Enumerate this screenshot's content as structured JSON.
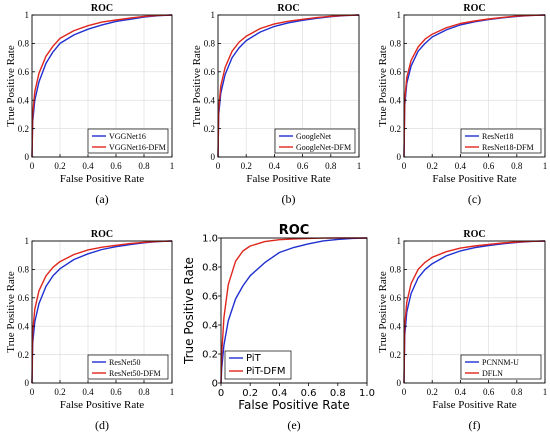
{
  "figure": {
    "colors": {
      "series1": "#1f2fd1",
      "series2": "#e0261c"
    }
  },
  "chart_data": [
    {
      "type": "line",
      "id": "a",
      "subfigure_label": "(a)",
      "title": "ROC",
      "xlabel": "False Positive Rate",
      "ylabel": "True Positive Rate",
      "xlim": [
        0,
        1
      ],
      "ylim": [
        0,
        1
      ],
      "xticks": [
        "0",
        "0.2",
        "0.4",
        "0.6",
        "0.8",
        "1"
      ],
      "yticks": [
        "0",
        "0.2",
        "0.4",
        "0.6",
        "0.8",
        "1"
      ],
      "grid": true,
      "legend_position": "bottom-right",
      "x": [
        0,
        0.005,
        0.02,
        0.05,
        0.1,
        0.15,
        0.2,
        0.3,
        0.4,
        0.5,
        0.6,
        0.7,
        0.8,
        0.9,
        1.0
      ],
      "series": [
        {
          "name": "VGGNet16",
          "y": [
            0,
            0.25,
            0.4,
            0.53,
            0.66,
            0.74,
            0.8,
            0.86,
            0.9,
            0.93,
            0.955,
            0.97,
            0.985,
            0.995,
            1.0
          ]
        },
        {
          "name": "VGGNet16-DFM",
          "y": [
            0,
            0.3,
            0.46,
            0.59,
            0.71,
            0.78,
            0.835,
            0.89,
            0.925,
            0.95,
            0.965,
            0.978,
            0.99,
            0.997,
            1.0
          ]
        }
      ]
    },
    {
      "type": "line",
      "id": "b",
      "subfigure_label": "(b)",
      "title": "ROC",
      "xlabel": "False Positive Rate",
      "ylabel": "True Positive Rate",
      "xlim": [
        0,
        1
      ],
      "ylim": [
        0,
        1
      ],
      "xticks": [
        "0",
        "0.2",
        "0.4",
        "0.6",
        "0.8",
        "1"
      ],
      "yticks": [
        "0",
        "0.2",
        "0.4",
        "0.6",
        "0.8",
        "1"
      ],
      "grid": true,
      "legend_position": "bottom-right",
      "x": [
        0,
        0.005,
        0.02,
        0.05,
        0.1,
        0.15,
        0.2,
        0.3,
        0.4,
        0.5,
        0.6,
        0.7,
        0.8,
        0.9,
        1.0
      ],
      "series": [
        {
          "name": "GoogleNet",
          "y": [
            0,
            0.3,
            0.45,
            0.58,
            0.7,
            0.77,
            0.82,
            0.88,
            0.92,
            0.945,
            0.963,
            0.977,
            0.988,
            0.996,
            1.0
          ]
        },
        {
          "name": "GoogleNet-DFM",
          "y": [
            0,
            0.34,
            0.5,
            0.63,
            0.745,
            0.81,
            0.85,
            0.905,
            0.937,
            0.956,
            0.97,
            0.982,
            0.991,
            0.997,
            1.0
          ]
        }
      ]
    },
    {
      "type": "line",
      "id": "c",
      "subfigure_label": "(c)",
      "title": "ROC",
      "xlabel": "False Positive Rate",
      "ylabel": "True Positive Rate",
      "xlim": [
        0,
        1
      ],
      "ylim": [
        0,
        1
      ],
      "xticks": [
        "0",
        "0.2",
        "0.4",
        "0.6",
        "0.8",
        "1"
      ],
      "yticks": [
        "0",
        "0.2",
        "0.4",
        "0.6",
        "0.8",
        "1"
      ],
      "grid": true,
      "legend_position": "bottom-right",
      "x": [
        0,
        0.005,
        0.02,
        0.05,
        0.1,
        0.15,
        0.2,
        0.3,
        0.4,
        0.5,
        0.6,
        0.7,
        0.8,
        0.9,
        1.0
      ],
      "series": [
        {
          "name": "ResNet18",
          "y": [
            0,
            0.36,
            0.52,
            0.64,
            0.745,
            0.8,
            0.845,
            0.895,
            0.93,
            0.952,
            0.968,
            0.98,
            0.99,
            0.997,
            1.0
          ]
        },
        {
          "name": "ResNet18-DFM",
          "y": [
            0,
            0.4,
            0.56,
            0.68,
            0.775,
            0.83,
            0.865,
            0.91,
            0.94,
            0.958,
            0.972,
            0.983,
            0.992,
            0.997,
            1.0
          ]
        }
      ]
    },
    {
      "type": "line",
      "id": "d",
      "subfigure_label": "(d)",
      "title": "ROC",
      "xlabel": "False Positive Rate",
      "ylabel": "True Positive Rate",
      "xlim": [
        0,
        1
      ],
      "ylim": [
        0,
        1
      ],
      "xticks": [
        "0",
        "0.2",
        "0.4",
        "0.6",
        "0.8",
        "1"
      ],
      "yticks": [
        "0",
        "0.2",
        "0.4",
        "0.6",
        "0.8",
        "1"
      ],
      "grid": true,
      "legend_position": "bottom-right",
      "x": [
        0,
        0.005,
        0.02,
        0.05,
        0.1,
        0.15,
        0.2,
        0.3,
        0.4,
        0.5,
        0.6,
        0.7,
        0.8,
        0.9,
        1.0
      ],
      "series": [
        {
          "name": "ResNet50",
          "y": [
            0,
            0.28,
            0.43,
            0.56,
            0.68,
            0.755,
            0.805,
            0.87,
            0.91,
            0.94,
            0.96,
            0.975,
            0.987,
            0.996,
            1.0
          ]
        },
        {
          "name": "ResNet50-DFM",
          "y": [
            0,
            0.36,
            0.52,
            0.65,
            0.755,
            0.815,
            0.855,
            0.905,
            0.937,
            0.956,
            0.97,
            0.982,
            0.991,
            0.997,
            1.0
          ]
        }
      ]
    },
    {
      "type": "line",
      "id": "e",
      "subfigure_label": "(e)",
      "title": "ROC",
      "xlabel": "False Positive Rate",
      "ylabel": "True Positive Rate",
      "xlim": [
        0,
        1
      ],
      "ylim": [
        0,
        1
      ],
      "xticks": [
        "0",
        "0.2",
        "0.4",
        "0.6",
        "0.8",
        "1.0"
      ],
      "yticks": [
        "0",
        "0.2",
        "0.4",
        "0.6",
        "0.8",
        "1.0"
      ],
      "grid": false,
      "legend_position": "bottom-left",
      "x": [
        0,
        0.005,
        0.02,
        0.05,
        0.1,
        0.15,
        0.2,
        0.3,
        0.4,
        0.5,
        0.6,
        0.7,
        0.8,
        0.9,
        1.0
      ],
      "series": [
        {
          "name": "PiT",
          "y": [
            0,
            0.1,
            0.26,
            0.43,
            0.58,
            0.67,
            0.74,
            0.83,
            0.9,
            0.935,
            0.96,
            0.98,
            0.99,
            0.997,
            1.0
          ]
        },
        {
          "name": "PiT-DFM",
          "y": [
            0,
            0.2,
            0.45,
            0.68,
            0.84,
            0.91,
            0.945,
            0.975,
            0.988,
            0.994,
            0.997,
            0.999,
            1.0,
            1.0,
            1.0
          ]
        }
      ]
    },
    {
      "type": "line",
      "id": "f",
      "subfigure_label": "(f)",
      "title": "ROC",
      "xlabel": "False Positive Rate",
      "ylabel": "True Positive Rate",
      "xlim": [
        0,
        1
      ],
      "ylim": [
        0,
        1
      ],
      "xticks": [
        "0",
        "0.2",
        "0.4",
        "0.6",
        "0.8",
        "1"
      ],
      "yticks": [
        "0",
        "0.2",
        "0.4",
        "0.6",
        "0.8",
        "1"
      ],
      "grid": true,
      "legend_position": "bottom-right",
      "x": [
        0,
        0.005,
        0.02,
        0.05,
        0.1,
        0.15,
        0.2,
        0.3,
        0.4,
        0.5,
        0.6,
        0.7,
        0.8,
        0.9,
        1.0
      ],
      "series": [
        {
          "name": "PCNNM-U",
          "y": [
            0,
            0.33,
            0.5,
            0.63,
            0.74,
            0.8,
            0.84,
            0.895,
            0.93,
            0.953,
            0.968,
            0.98,
            0.99,
            0.997,
            1.0
          ]
        },
        {
          "name": "DFLN",
          "y": [
            0,
            0.4,
            0.57,
            0.7,
            0.8,
            0.85,
            0.885,
            0.925,
            0.95,
            0.965,
            0.976,
            0.986,
            0.993,
            0.998,
            1.0
          ]
        }
      ]
    }
  ]
}
